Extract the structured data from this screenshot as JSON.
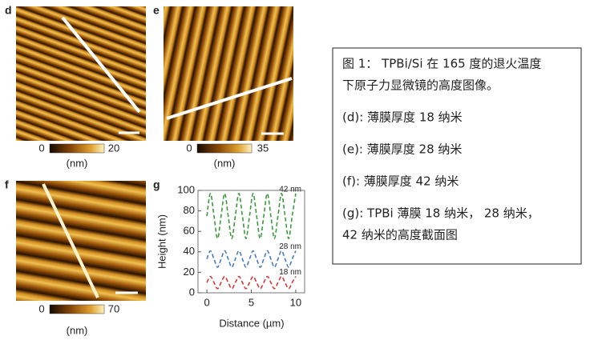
{
  "panels": [
    {
      "letter": "d",
      "colorbar": {
        "min": "0",
        "max": "20",
        "unit": "(nm)"
      }
    },
    {
      "letter": "e",
      "colorbar": {
        "min": "0",
        "max": "35",
        "unit": "(nm)"
      }
    },
    {
      "letter": "f",
      "colorbar": {
        "min": "0",
        "max": "70",
        "unit": "(nm)"
      }
    }
  ],
  "chart_data": {
    "type": "line",
    "letter": "g",
    "x_label": "Distance (µm)",
    "y_label": "Height (nm)",
    "x": [
      0,
      0.4,
      0.8,
      1.2,
      1.6,
      2.0,
      2.4,
      2.8,
      3.2,
      3.6,
      4.0,
      4.4,
      4.8,
      5.2,
      5.6,
      6.0,
      6.4,
      6.8,
      7.2,
      7.6,
      8.0,
      8.4,
      8.8,
      9.2,
      9.6,
      10.0
    ],
    "xlim": [
      -1,
      11
    ],
    "xticks": [
      0,
      5,
      10
    ],
    "ylim": [
      0,
      100
    ],
    "yticks": [
      0,
      20,
      40,
      60,
      80,
      100
    ],
    "series": [
      {
        "name": "42 nm",
        "color": "#3d9a3d",
        "values": [
          75,
          97,
          75,
          53,
          75,
          97,
          75,
          53,
          75,
          97,
          75,
          53,
          75,
          97,
          75,
          53,
          75,
          97,
          75,
          53,
          75,
          97,
          75,
          53,
          75,
          97
        ]
      },
      {
        "name": "28 nm",
        "color": "#4a7cbc",
        "values": [
          33,
          41,
          33,
          25,
          33,
          41,
          33,
          25,
          33,
          41,
          33,
          25,
          33,
          41,
          33,
          25,
          33,
          41,
          33,
          25,
          33,
          41,
          33,
          25,
          33,
          41
        ]
      },
      {
        "name": "18 nm",
        "color": "#d23a3a",
        "values": [
          10,
          16,
          10,
          4,
          10,
          16,
          10,
          4,
          10,
          16,
          10,
          4,
          10,
          16,
          10,
          4,
          10,
          16,
          10,
          4,
          10,
          16,
          10,
          4,
          10,
          16
        ]
      }
    ]
  },
  "caption": {
    "title_lines": [
      "图 1： TPBi/Si 在 165 度的退火温度",
      "下原子力显微镜的高度图像。"
    ],
    "items": [
      [
        "(d): 薄膜厚度 18 纳米"
      ],
      [
        "(e): 薄膜厚度 28 纳米"
      ],
      [
        "(f): 薄膜厚度 42 纳米"
      ],
      [
        "(g): TPBi 薄膜 18 纳米， 28 纳米，",
        "42 纳米的高度截面图"
      ]
    ]
  }
}
